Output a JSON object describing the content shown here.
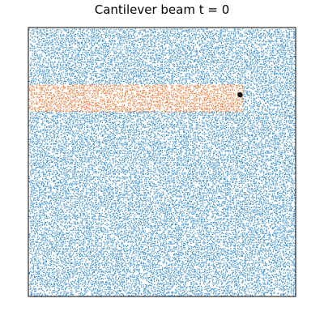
{
  "chart_data": {
    "type": "scatter",
    "title": "Cantilever beam t = 0",
    "xlabel": "",
    "ylabel": "",
    "xlim": [
      0,
      1
    ],
    "ylim": [
      0,
      1
    ],
    "grid": false,
    "axes_ticks": false,
    "series": [
      {
        "role": "fluid particles",
        "color": "#3a8fd3",
        "region": {
          "x": [
            0.0,
            1.0
          ],
          "y": [
            0.0,
            1.0
          ]
        },
        "spacing": 0.0065
      },
      {
        "role": "beam particles",
        "color": "#f07e3c",
        "region": {
          "x": [
            0.0,
            0.8
          ],
          "y": [
            0.69,
            0.79
          ]
        },
        "spacing": 0.0065
      },
      {
        "role": "tracer point",
        "color": "#111111",
        "point": {
          "x": 0.792,
          "y": 0.75
        }
      }
    ]
  }
}
